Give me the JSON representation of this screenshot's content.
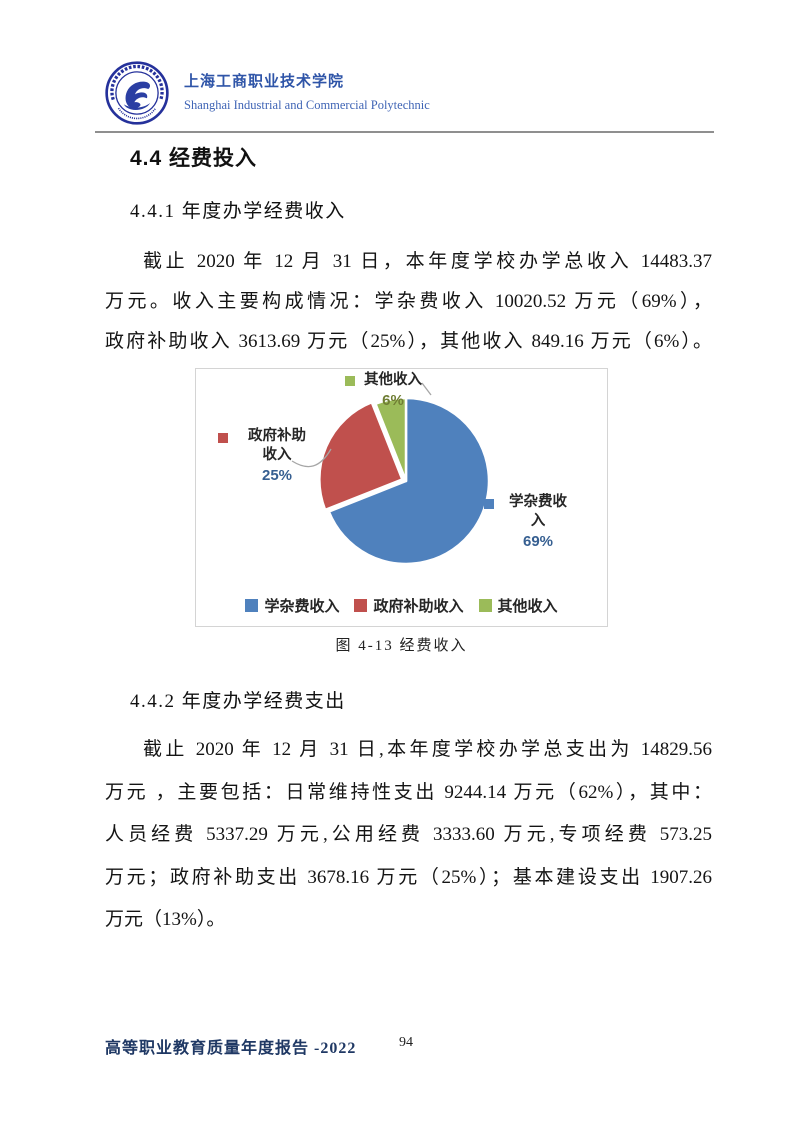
{
  "header": {
    "school_name_zh": "上海工商职业技术学院",
    "school_name_en": "Shanghai Industrial and Commercial Polytechnic"
  },
  "sections": {
    "heading": "4.4 经费投入",
    "income_heading": "4.4.1 年度办学经费收入",
    "income_lines": [
      "截止 2020 年 12 月 31 日，本年度学校办学总收入 14483.37",
      "万元。收入主要构成情况：学杂费收入 10020.52 万元（69%），",
      "政府补助收入 3613.69 万元（25%），其他收入 849.16 万元（6%）。"
    ],
    "expense_heading": "4.4.2 年度办学经费支出",
    "expense_lines": [
      "截止 2020 年 12 月 31 日,本年度学校办学总支出为 14829.56",
      "万元 ，主要包括：日常维持性支出 9244.14 万元（62%），其中：",
      "人员经费 5337.29 万元,公用经费 3333.60 万元,专项经费 573.25",
      "万元；政府补助支出 3678.16 万元（25%）；基本建设支出 1907.26",
      "万元（13%）。"
    ]
  },
  "chart_data": {
    "type": "pie",
    "caption": "图 4-13 经费收入",
    "categories": [
      "学杂费收入",
      "政府补助收入",
      "其他收入"
    ],
    "values": [
      69,
      25,
      6
    ],
    "unit": "percent",
    "colors": [
      "#4f81bd",
      "#c0504d",
      "#9bbb59"
    ],
    "pct_label_colors": [
      "#365f91",
      "#365f91",
      "#6f7d33"
    ],
    "legend_position": "bottom",
    "start_angle_deg": 0,
    "direction": "clockwise",
    "callouts": [
      {
        "line1": "学杂费收",
        "line2": "入",
        "pct": "69%"
      },
      {
        "line1": "政府补助",
        "line2": "收入",
        "pct": "25%"
      },
      {
        "line1": "其他收入",
        "line2": "",
        "pct": "6%"
      }
    ]
  },
  "footer": {
    "report_title": "高等职业教育质量年度报告 -2022",
    "page_number": "94"
  },
  "colors": {
    "brand_blue": "#2f55a8",
    "footer_navy": "#1f3864",
    "header_rule_gray": "#8f8f8f"
  }
}
